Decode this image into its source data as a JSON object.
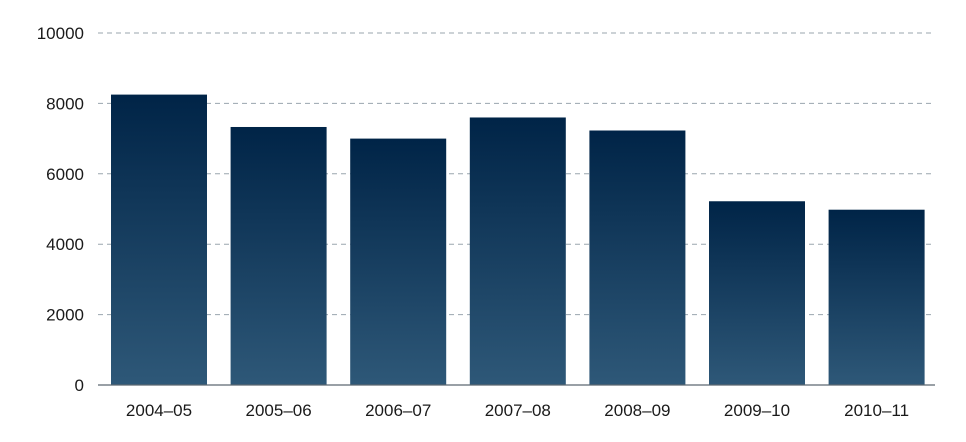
{
  "chart_data": {
    "type": "bar",
    "title": "",
    "xlabel": "",
    "ylabel": "",
    "categories": [
      "2004–05",
      "2005–06",
      "2006–07",
      "2007–08",
      "2008–09",
      "2009–10",
      "2010–11"
    ],
    "values": [
      8250,
      7330,
      7000,
      7600,
      7230,
      5220,
      4980
    ],
    "ylim": [
      0,
      10000
    ],
    "yticks": [
      0,
      2000,
      4000,
      6000,
      8000,
      10000
    ],
    "ytick_labels": [
      "0",
      "2000",
      "4000",
      "6000",
      "8000",
      "10000"
    ],
    "grid": true,
    "legend": "none",
    "colors": {
      "bar_top": "#002447",
      "bar_bottom": "#2e5878",
      "grid": "#9aa5ae",
      "axis": "#5c6770"
    }
  }
}
